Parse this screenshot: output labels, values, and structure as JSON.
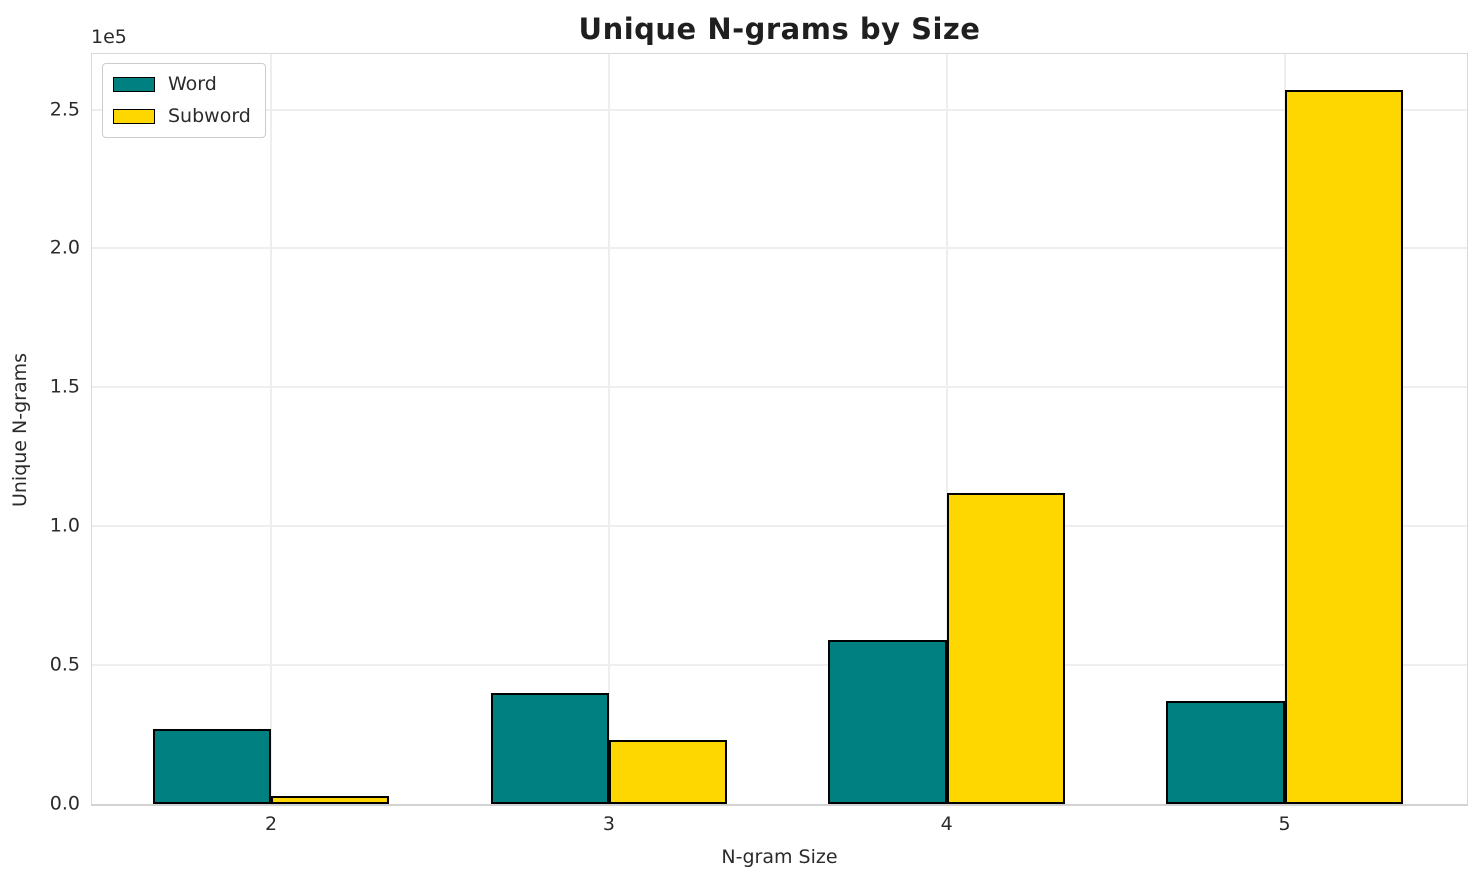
{
  "chart_data": {
    "type": "bar",
    "title": "Unique N-grams by Size",
    "xlabel": "N-gram Size",
    "ylabel": "Unique N-grams",
    "y_offset_text": "1e5",
    "categories": [
      "2",
      "3",
      "4",
      "5"
    ],
    "x_positions": [
      2,
      3,
      4,
      5
    ],
    "series": [
      {
        "name": "Word",
        "color": "#008080",
        "values": [
          27000,
          40000,
          59000,
          37000
        ]
      },
      {
        "name": "Subword",
        "color": "#FFD700",
        "values": [
          3000,
          23000,
          112000,
          257000
        ]
      }
    ],
    "bar_width": 0.35,
    "bar_edge_color": "#000000",
    "xlim": [
      1.47,
      5.54
    ],
    "ylim": [
      0,
      270000
    ],
    "yticks": [
      0,
      50000,
      100000,
      150000,
      200000,
      250000
    ],
    "ytick_labels": [
      "0.0",
      "0.5",
      "1.0",
      "1.5",
      "2.0",
      "2.5"
    ],
    "grid": true,
    "legend": {
      "position": "upper left",
      "labels": [
        "Word",
        "Subword"
      ]
    }
  }
}
